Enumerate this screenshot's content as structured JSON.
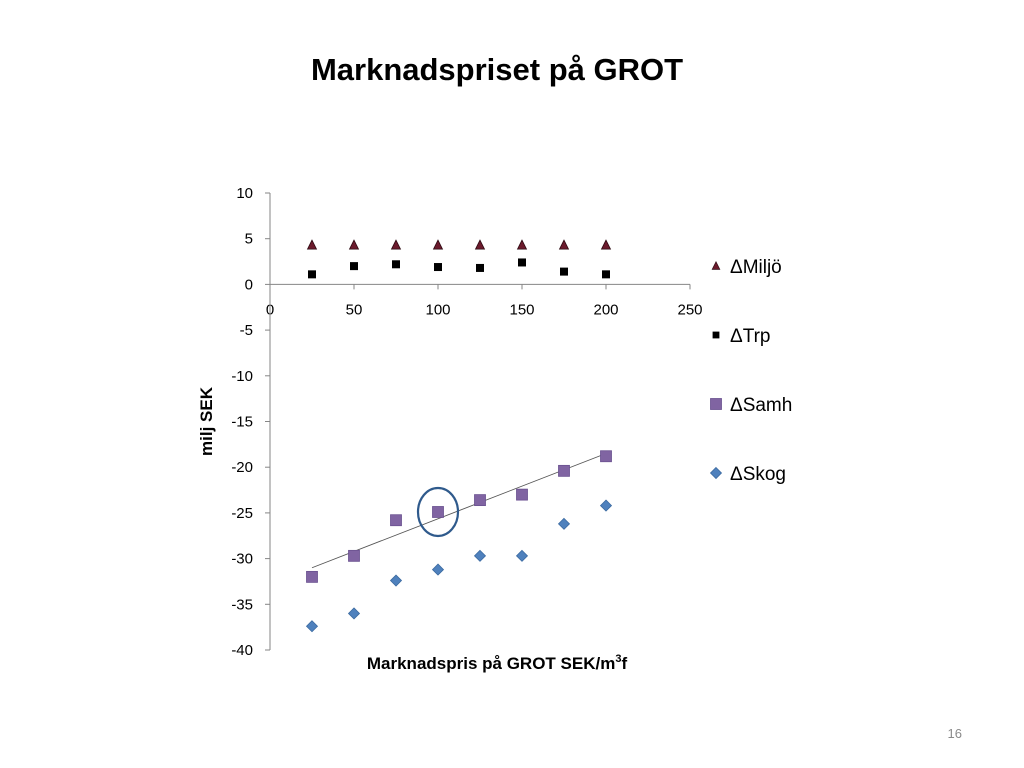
{
  "slide": {
    "title": "Marknadspriset på GROT",
    "page_number": "16"
  },
  "chart_data": {
    "type": "scatter",
    "xlabel": "Marknadspris på GROT SEK/m",
    "xlabel_sup": "3",
    "xlabel_suffix": "f",
    "ylabel": "milj SEK",
    "xlim": [
      0,
      250
    ],
    "ylim": [
      -40,
      10
    ],
    "xticks": [
      0,
      50,
      100,
      150,
      200,
      250
    ],
    "yticks": [
      10,
      5,
      0,
      -5,
      -10,
      -15,
      -20,
      -25,
      -30,
      -35,
      -40
    ],
    "grid": false,
    "legend_position": "right",
    "series": [
      {
        "name": "ΔMiljö",
        "marker": "triangle",
        "color": "#6b1a2c",
        "x": [
          25,
          50,
          75,
          100,
          125,
          150,
          175,
          200
        ],
        "y": [
          4.3,
          4.3,
          4.3,
          4.3,
          4.3,
          4.3,
          4.3,
          4.3
        ]
      },
      {
        "name": "ΔTrp",
        "marker": "square-small",
        "color": "#000000",
        "x": [
          25,
          50,
          75,
          100,
          125,
          150,
          175,
          200
        ],
        "y": [
          1.1,
          2.0,
          2.2,
          1.9,
          1.8,
          2.4,
          1.4,
          1.1
        ]
      },
      {
        "name": "ΔSamh",
        "marker": "square",
        "color": "#8064a2",
        "x": [
          25,
          50,
          75,
          100,
          125,
          150,
          175,
          200
        ],
        "y": [
          -32.0,
          -29.7,
          -25.8,
          -24.9,
          -23.6,
          -23.0,
          -20.4,
          -18.8
        ],
        "trendline": {
          "from": [
            25,
            -31.0
          ],
          "to": [
            200,
            -18.5
          ]
        },
        "highlight": {
          "x": 100,
          "y": -24.9,
          "color": "#2f5a8c"
        }
      },
      {
        "name": "ΔSkog",
        "marker": "diamond",
        "color": "#4f81bd",
        "x": [
          25,
          50,
          75,
          100,
          125,
          150,
          175,
          200
        ],
        "y": [
          -37.4,
          -36.0,
          -32.4,
          -31.2,
          -29.7,
          -29.7,
          -26.2,
          -24.2
        ]
      }
    ]
  }
}
